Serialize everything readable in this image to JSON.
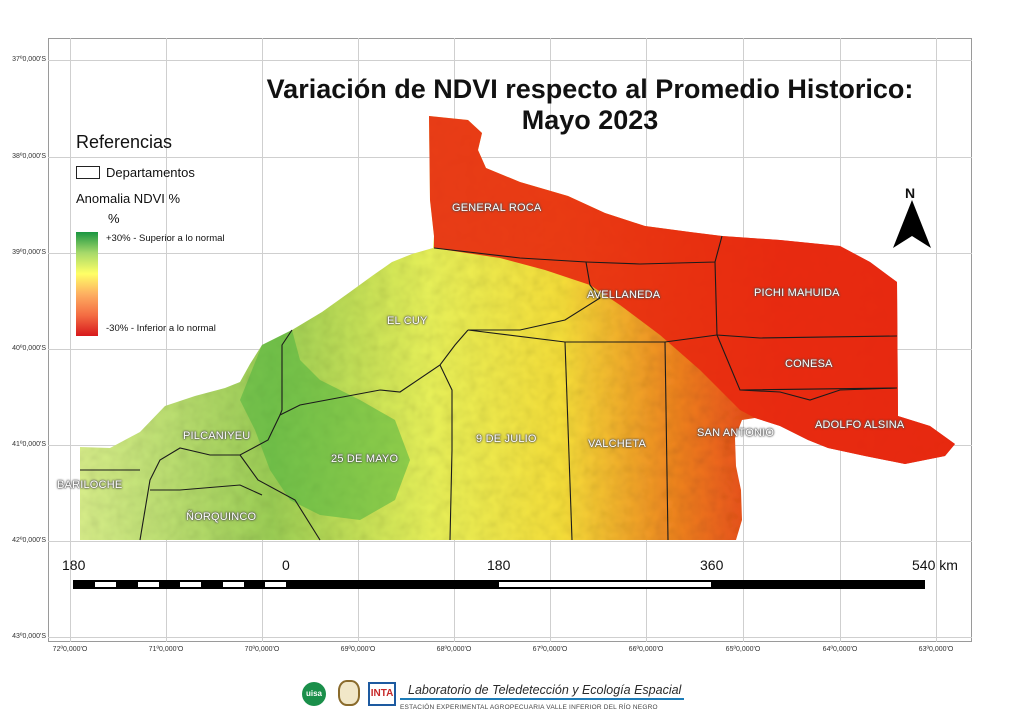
{
  "title_line1": "Variación de NDVI respecto al Promedio Historico:",
  "title_line2": "Mayo 2023",
  "legend": {
    "title": "Referencias",
    "departments_label": "Departamentos",
    "ndvi_label": "Anomalia NDVI %",
    "unit": "%",
    "high_label": "+30% - Superior a lo normal",
    "low_label": "-30% - Inferior a lo normal",
    "colors": [
      "#1a9641",
      "#a6d96a",
      "#ffff66",
      "#fdae61",
      "#f46d43",
      "#d7191c"
    ]
  },
  "lat_labels": [
    "37º0,000'S",
    "38º0,000'S",
    "39º0,000'S",
    "40º0,000'S",
    "41º0,000'S",
    "42º0,000'S",
    "43º0,000'S"
  ],
  "lon_labels": [
    "72º0,000'O",
    "71º0,000'O",
    "70º0,000'O",
    "69º0,000'O",
    "68º0,000'O",
    "67º0,000'O",
    "66º0,000'O",
    "65º0,000'O",
    "64º0,000'O",
    "63º0,000'O"
  ],
  "departments": [
    "GENERAL ROCA",
    "AVELLANEDA",
    "PICHI MAHUIDA",
    "EL CUY",
    "CONESA",
    "PILCANIYEU",
    "9 DE JULIO",
    "VALCHETA",
    "SAN ANTONIO",
    "ADOLFO ALSINA",
    "25 DE MAYO",
    "BARILOCHE",
    "ÑORQUINCO"
  ],
  "scale_bar": {
    "labels": [
      "180",
      "0",
      "180",
      "360",
      "540 km"
    ]
  },
  "north_label": "N",
  "footer": {
    "lab_name": "Laboratorio de Teledetección y Ecología Espacial",
    "station": "ESTACIÓN EXPERIMENTAL AGROPECUARIA VALLE INFERIOR DEL RÍO NEGRO",
    "logo_uisa": "uisa",
    "logo_inta": "INTA"
  }
}
